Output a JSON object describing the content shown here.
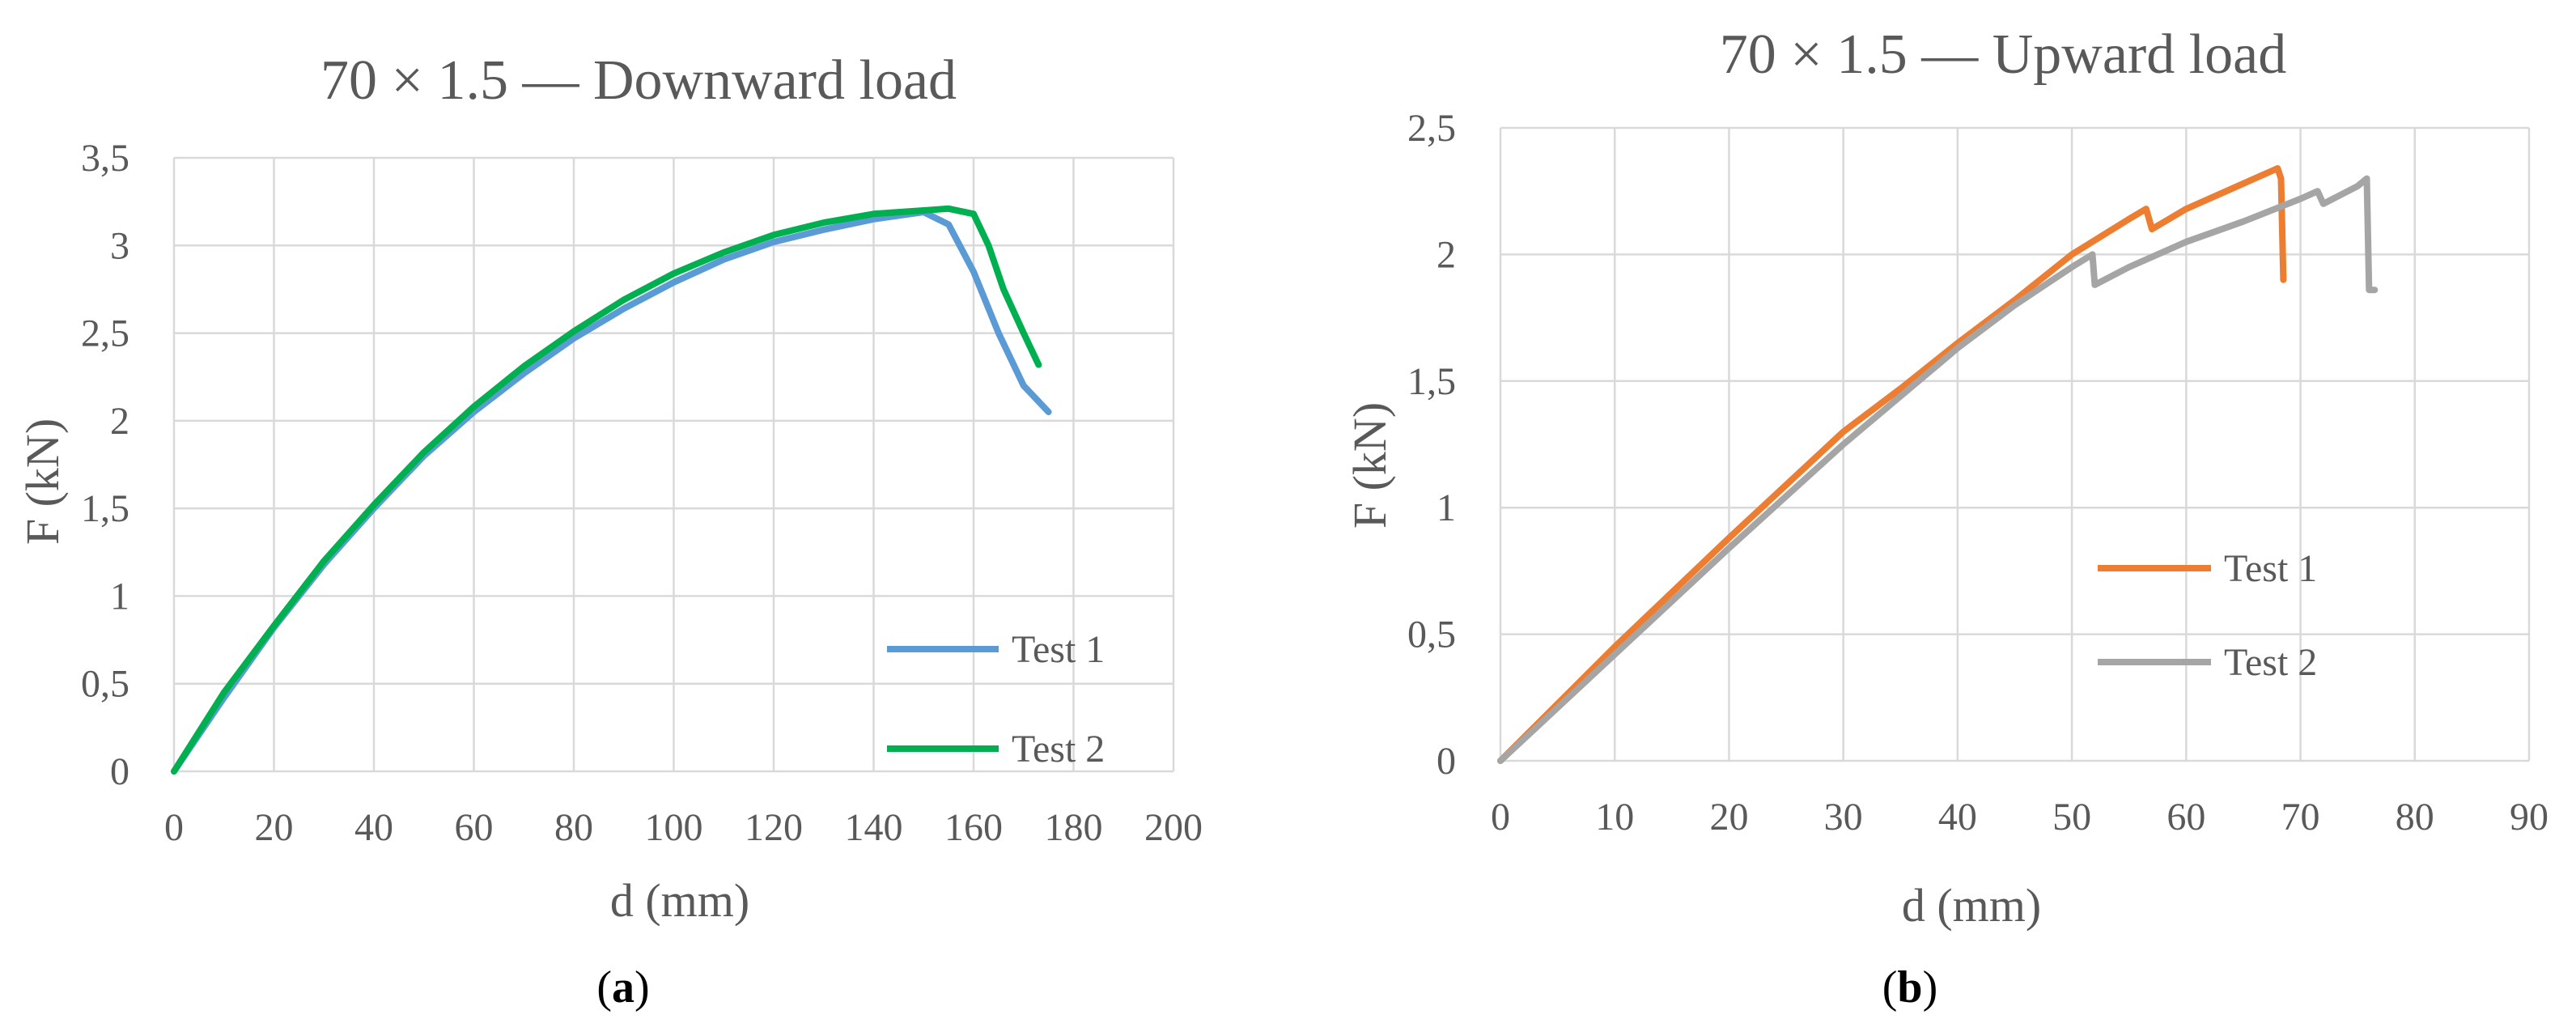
{
  "chart_data": [
    {
      "type": "line",
      "title": "70 × 1.5 — Downward load",
      "xlabel": "d (mm)",
      "ylabel": "F (kN)",
      "caption": {
        "open": "(",
        "letter": "a",
        "close": ")"
      },
      "xlim": [
        0,
        200
      ],
      "ylim": [
        0,
        3.5
      ],
      "x_ticks": [
        "0",
        "20",
        "40",
        "60",
        "80",
        "100",
        "120",
        "140",
        "160",
        "180",
        "200"
      ],
      "y_ticks": [
        "0",
        "0,5",
        "1",
        "1,5",
        "2",
        "2,5",
        "3",
        "3,5"
      ],
      "grid": true,
      "legend_position": "bottom-right",
      "series": [
        {
          "name": "Test 1",
          "color": "#5b9bd5",
          "x": [
            0,
            10,
            20,
            30,
            40,
            50,
            60,
            70,
            80,
            90,
            100,
            110,
            120,
            130,
            140,
            150,
            155,
            160,
            165,
            170,
            175
          ],
          "y": [
            0,
            0.42,
            0.82,
            1.18,
            1.5,
            1.8,
            2.05,
            2.27,
            2.47,
            2.64,
            2.79,
            2.92,
            3.02,
            3.09,
            3.15,
            3.19,
            3.12,
            2.85,
            2.5,
            2.2,
            2.05
          ]
        },
        {
          "name": "Test 2",
          "color": "#00b050",
          "x": [
            0,
            10,
            20,
            30,
            40,
            50,
            60,
            70,
            80,
            90,
            100,
            110,
            120,
            130,
            140,
            150,
            155,
            160,
            163,
            166,
            170,
            173
          ],
          "y": [
            0,
            0.45,
            0.83,
            1.2,
            1.52,
            1.82,
            2.08,
            2.31,
            2.51,
            2.69,
            2.84,
            2.96,
            3.06,
            3.13,
            3.18,
            3.2,
            3.21,
            3.18,
            3.0,
            2.75,
            2.5,
            2.32
          ]
        }
      ]
    },
    {
      "type": "line",
      "title": "70 × 1.5  — Upward load",
      "xlabel": "d (mm)",
      "ylabel": "F (kN)",
      "caption": {
        "open": "(",
        "letter": "b",
        "close": ")"
      },
      "xlim": [
        0,
        90
      ],
      "ylim": [
        0,
        2.5
      ],
      "x_ticks": [
        "0",
        "10",
        "20",
        "30",
        "40",
        "50",
        "60",
        "70",
        "80",
        "90"
      ],
      "y_ticks": [
        "0",
        "0,5",
        "1",
        "1,5",
        "2",
        "2,5"
      ],
      "grid": true,
      "legend_position": "right",
      "series": [
        {
          "name": "Test 1",
          "color": "#ed7d31",
          "x": [
            0,
            10,
            20,
            30,
            35,
            40,
            45,
            50,
            55,
            56.5,
            57,
            60,
            65,
            68,
            68.3,
            68.5
          ],
          "y": [
            0,
            0.45,
            0.88,
            1.3,
            1.47,
            1.65,
            1.82,
            2.0,
            2.14,
            2.18,
            2.1,
            2.18,
            2.28,
            2.34,
            2.3,
            1.9
          ]
        },
        {
          "name": "Test 2",
          "color": "#a5a5a5",
          "x": [
            0,
            10,
            20,
            30,
            40,
            45,
            47,
            50,
            51.8,
            52,
            55,
            60,
            65,
            70,
            71.5,
            72,
            75,
            75.8,
            76,
            76.5
          ],
          "y": [
            0,
            0.42,
            0.84,
            1.25,
            1.63,
            1.8,
            1.86,
            1.95,
            2.0,
            1.88,
            1.95,
            2.05,
            2.13,
            2.22,
            2.25,
            2.2,
            2.27,
            2.3,
            1.86,
            1.86
          ]
        }
      ]
    }
  ]
}
